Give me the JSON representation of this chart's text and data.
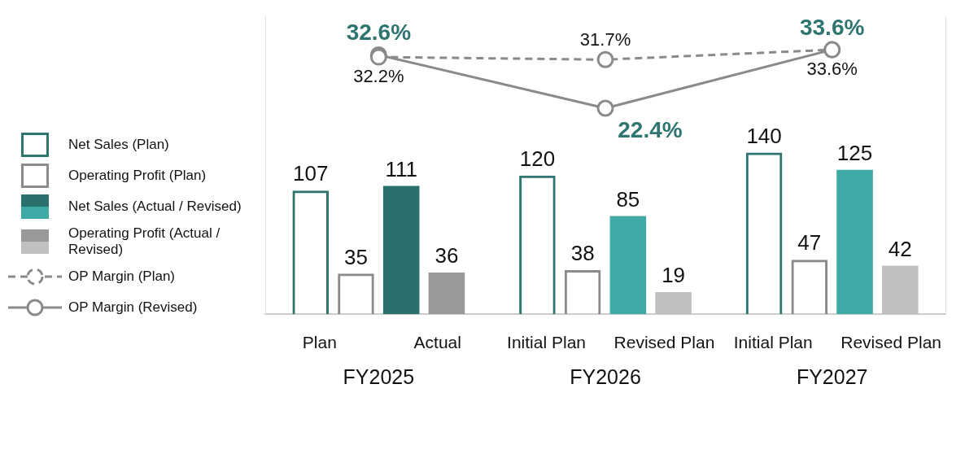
{
  "chart_data": {
    "type": "bar",
    "categories": [
      "FY2025",
      "FY2026",
      "FY2027"
    ],
    "annotations": [
      "Plan",
      "Actual",
      "Initial Plan",
      "Revised Plan",
      "Initial Plan",
      "Revised Plan"
    ],
    "series": [
      {
        "name": "Net Sales (Plan)",
        "color": "#2e7570",
        "values": [
          107,
          120,
          140
        ]
      },
      {
        "name": "Operating Profit (Plan)",
        "color": "#8a8a8a",
        "values": [
          35,
          38,
          47
        ]
      },
      {
        "name": "Net Sales (Actual / Revised)",
        "colors": [
          "#2a706c",
          "#3fa9a5",
          "#3fa9a5"
        ],
        "values": [
          111,
          85,
          125
        ]
      },
      {
        "name": "Operating Profit (Actual / Revised)",
        "colors": [
          "#999999",
          "#c0c0c0",
          "#c0c0c0"
        ],
        "values": [
          36,
          19,
          42
        ]
      },
      {
        "name": "OP Margin (Plan)",
        "type": "line",
        "axis": "y2",
        "color": "#8a8a8a",
        "line_style": "dashed",
        "marker": "circle",
        "values": [
          32.2,
          31.7,
          33.6
        ],
        "value_labels": [
          "32.2%",
          "31.7%",
          "33.6%"
        ]
      },
      {
        "name": "OP Margin (Revised)",
        "type": "line",
        "axis": "y2",
        "color": "#8a8a8a",
        "line_style": "solid",
        "marker": "circle",
        "values": [
          32.6,
          22.4,
          33.6
        ],
        "value_labels": [
          "32.6%",
          "22.4%",
          "33.6%"
        ]
      }
    ],
    "ylim": [
      0,
      258
    ],
    "y2lim": [
      -17,
      40
    ],
    "tick_labels": "x",
    "data_labels": true,
    "legend": "left",
    "grid": false
  }
}
